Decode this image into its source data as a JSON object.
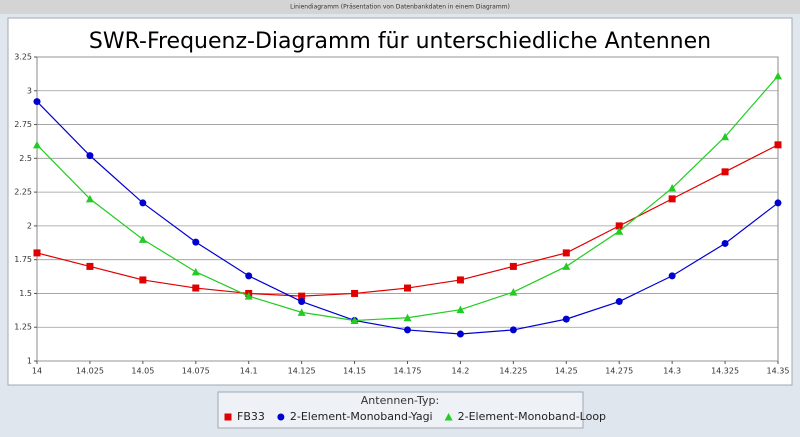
{
  "window_title": "Liniendiagramm (Präsentation von Datenbankdaten in einem Diagramm)",
  "chart_data": {
    "type": "line",
    "title": "SWR-Frequenz-Diagramm für unterschiedliche Antennen",
    "legend_title": "Antennen-Typ:",
    "x": [
      14,
      14.025,
      14.05,
      14.075,
      14.1,
      14.125,
      14.15,
      14.175,
      14.2,
      14.225,
      14.25,
      14.275,
      14.3,
      14.325,
      14.35
    ],
    "series": [
      {
        "name": "FB33",
        "color": "#e00000",
        "marker": "square",
        "values": [
          1.8,
          1.7,
          1.6,
          1.54,
          1.5,
          1.48,
          1.5,
          1.54,
          1.6,
          1.7,
          1.8,
          2.0,
          2.2,
          2.4,
          2.6
        ]
      },
      {
        "name": "2-Element-Monoband-Yagi",
        "color": "#0000d0",
        "marker": "circle",
        "values": [
          2.92,
          2.52,
          2.17,
          1.88,
          1.63,
          1.44,
          1.3,
          1.23,
          1.2,
          1.23,
          1.31,
          1.44,
          1.63,
          1.87,
          2.17
        ]
      },
      {
        "name": "2-Element-Monoband-Loop",
        "color": "#22cc22",
        "marker": "triangle",
        "values": [
          2.6,
          2.2,
          1.9,
          1.66,
          1.48,
          1.36,
          1.3,
          1.32,
          1.38,
          1.51,
          1.7,
          1.96,
          2.28,
          2.66,
          3.11
        ]
      }
    ],
    "xlim": [
      14,
      14.35
    ],
    "xticks": [
      14,
      14.025,
      14.05,
      14.075,
      14.1,
      14.125,
      14.15,
      14.175,
      14.2,
      14.225,
      14.25,
      14.275,
      14.3,
      14.325,
      14.35
    ],
    "ylim": [
      1,
      3.25
    ],
    "yticks": [
      1,
      1.25,
      1.5,
      1.75,
      2,
      2.25,
      2.5,
      2.75,
      3,
      3.25
    ],
    "grid": true
  }
}
